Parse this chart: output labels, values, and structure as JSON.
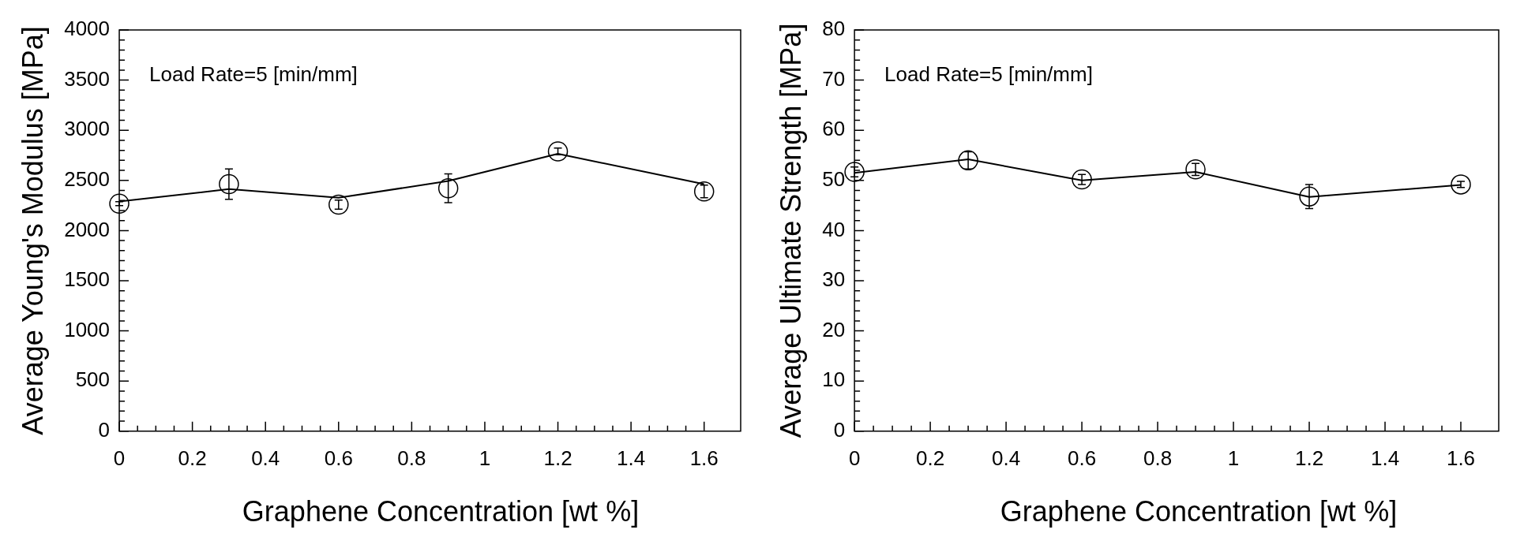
{
  "chart_data": [
    {
      "type": "line",
      "xlabel": "Graphene Concentration [wt %]",
      "ylabel": "Average Young's Modulus [MPa]",
      "annotations": [
        "Load Rate=5 [min/mm]"
      ],
      "x": [
        0,
        0.3,
        0.6,
        0.9,
        1.2,
        1.6
      ],
      "series": [
        {
          "type": "line",
          "color": "#000000",
          "values": [
            2290,
            2413,
            2327,
            2494,
            2766,
            2463
          ]
        },
        {
          "type": "scatter",
          "color": "#000000",
          "marker": "circle",
          "values": [
            2268,
            2463,
            2259,
            2422,
            2789,
            2390
          ],
          "errors": [
            20,
            152,
            45,
            143,
            34,
            63
          ]
        }
      ],
      "xlim": [
        0,
        1.7
      ],
      "xticks": [
        0,
        0.2,
        0.4,
        0.6,
        0.8,
        1,
        1.2,
        1.4,
        1.6
      ],
      "ylim": [
        0,
        4000
      ],
      "yticks": [
        0,
        500,
        1000,
        1500,
        2000,
        2500,
        3000,
        3500,
        4000
      ],
      "grid": false,
      "legend": false
    },
    {
      "type": "line",
      "xlabel": "Graphene Concentration [wt %]",
      "ylabel": "Average Ultimate Strength [MPa]",
      "annotations": [
        "Load Rate=5 [min/mm]"
      ],
      "x": [
        0,
        0.3,
        0.6,
        0.9,
        1.2,
        1.6
      ],
      "series": [
        {
          "type": "line",
          "color": "#000000",
          "values": [
            51.5,
            54.2,
            50.0,
            51.7,
            46.7,
            49.1
          ]
        },
        {
          "type": "scatter",
          "color": "#000000",
          "marker": "circle",
          "values": [
            51.7,
            54.0,
            50.2,
            52.2,
            46.8,
            49.2
          ],
          "errors": [
            1,
            1.7,
            1,
            1.2,
            2.4,
            0.6
          ]
        }
      ],
      "xlim": [
        0,
        1.7
      ],
      "xticks": [
        0,
        0.2,
        0.4,
        0.6,
        0.8,
        1,
        1.2,
        1.4,
        1.6
      ],
      "ylim": [
        0,
        80
      ],
      "yticks": [
        0,
        10,
        20,
        30,
        40,
        50,
        60,
        70,
        80
      ],
      "grid": false,
      "legend": false
    }
  ]
}
